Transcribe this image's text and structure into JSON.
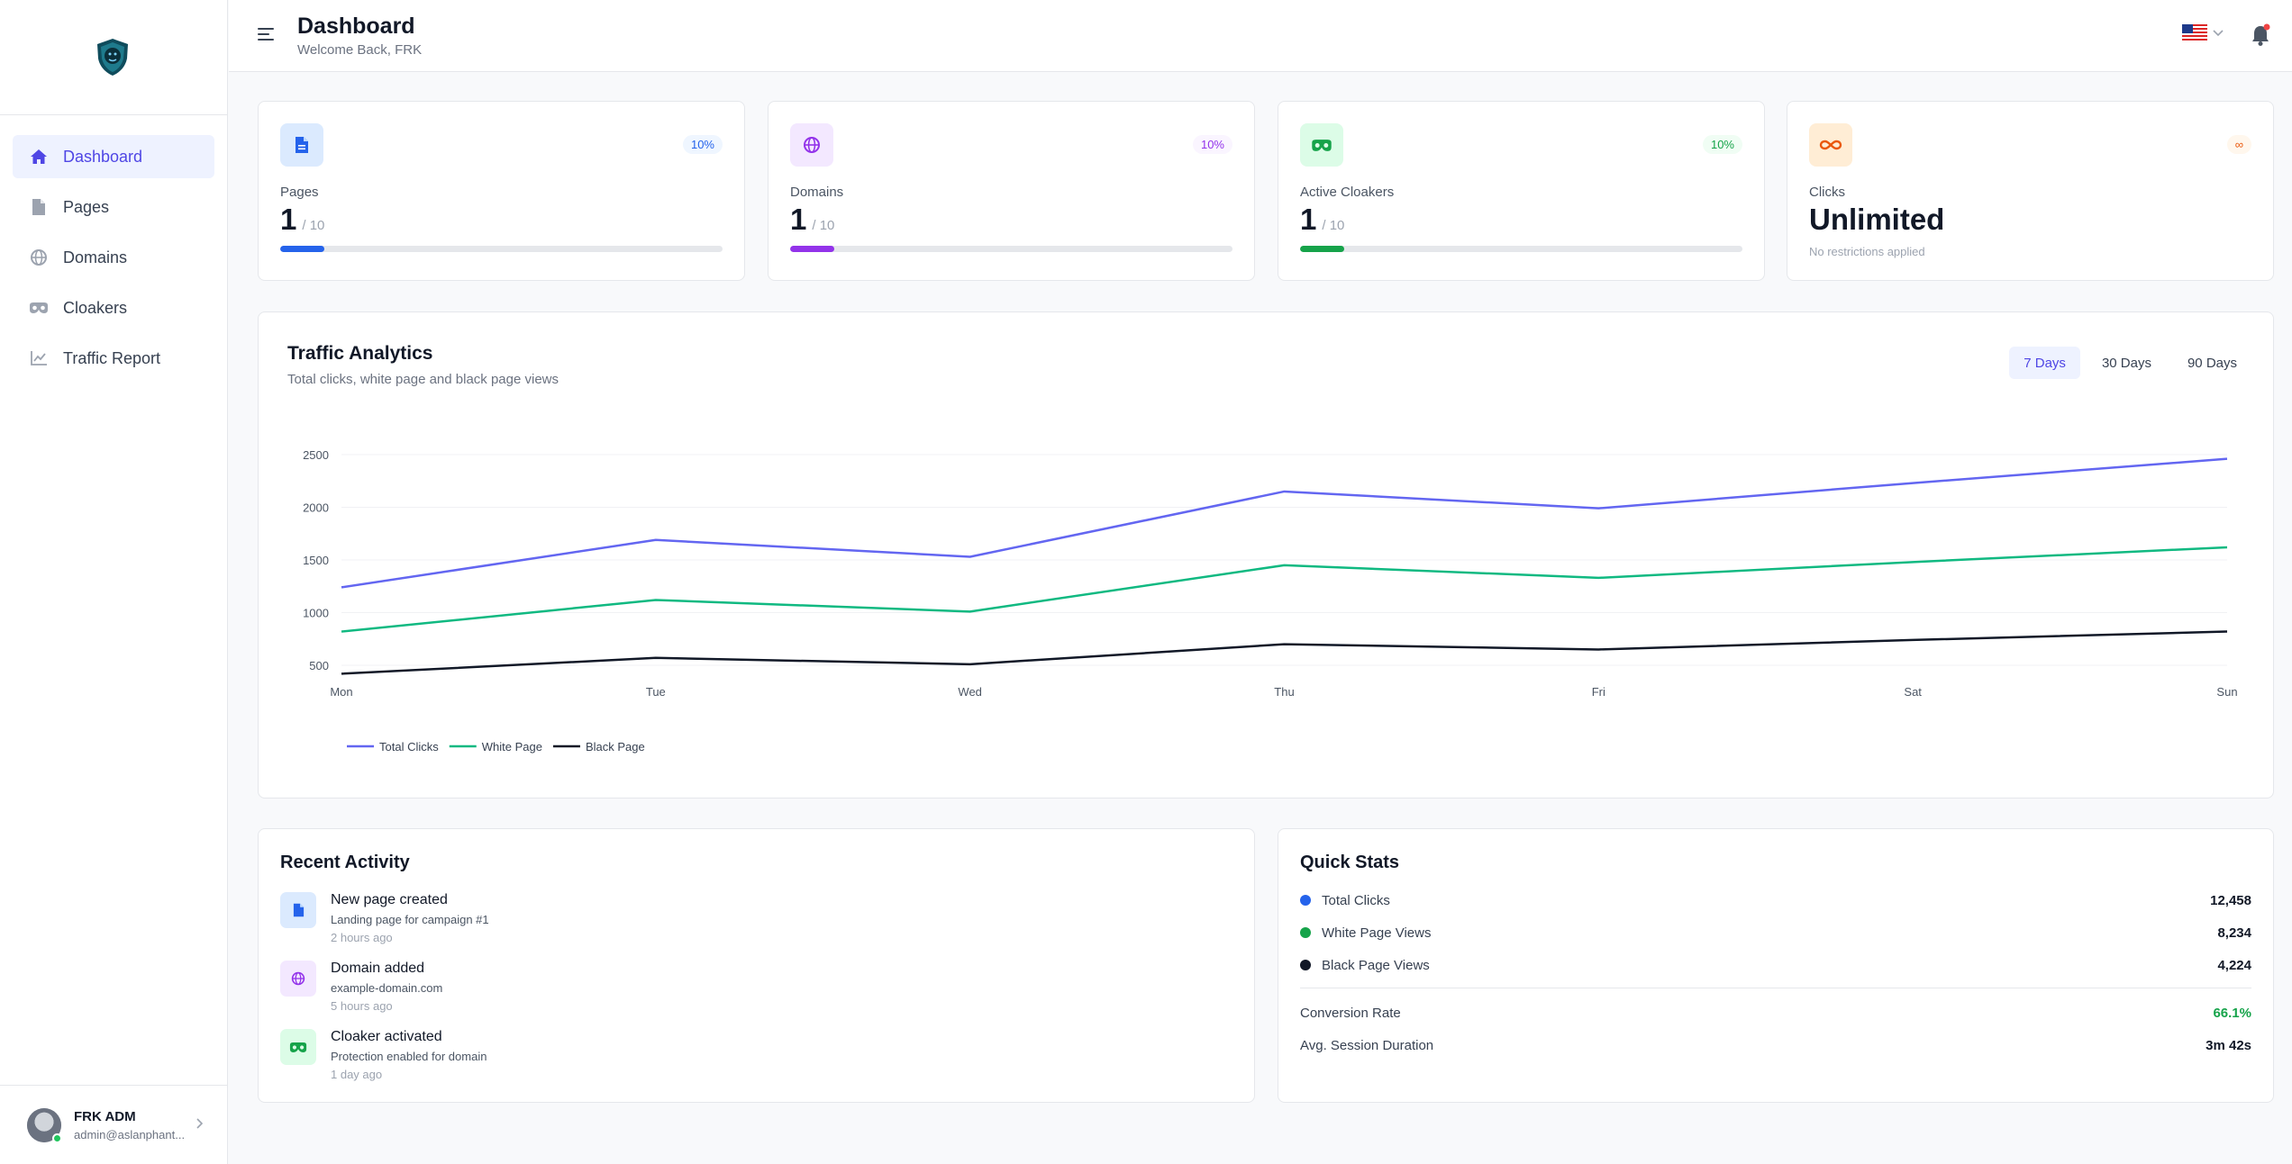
{
  "header": {
    "title": "Dashboard",
    "subtitle": "Welcome Back, FRK"
  },
  "sidebar": {
    "items": [
      {
        "label": "Dashboard",
        "icon": "home-icon",
        "active": true
      },
      {
        "label": "Pages",
        "icon": "file-icon",
        "active": false
      },
      {
        "label": "Domains",
        "icon": "globe-icon",
        "active": false
      },
      {
        "label": "Cloakers",
        "icon": "mask-icon",
        "active": false
      },
      {
        "label": "Traffic Report",
        "icon": "line-chart-icon",
        "active": false
      }
    ]
  },
  "user": {
    "name": "FRK ADM",
    "email": "admin@aslanphant..."
  },
  "stats": [
    {
      "label": "Pages",
      "value": "1",
      "max": "/ 10",
      "badge": "10%",
      "progress": 0.1,
      "color": "#2563eb",
      "bg": "#dbeafe",
      "icon": "file-icon"
    },
    {
      "label": "Domains",
      "value": "1",
      "max": "/ 10",
      "badge": "10%",
      "progress": 0.1,
      "color": "#9333ea",
      "bg": "#f3e8ff",
      "icon": "globe-icon"
    },
    {
      "label": "Active Cloakers",
      "value": "1",
      "max": "/ 10",
      "badge": "10%",
      "progress": 0.1,
      "color": "#16a34a",
      "bg": "#dcfce7",
      "icon": "mask-icon"
    },
    {
      "label": "Clicks",
      "value": "Unlimited",
      "note": "No restrictions applied",
      "badge": "∞",
      "color": "#ea580c",
      "bg": "#ffedd5",
      "icon": "infinity-icon"
    }
  ],
  "traffic": {
    "title": "Traffic Analytics",
    "subtitle": "Total clicks, white page and black page views",
    "ranges": [
      "7 Days",
      "30 Days",
      "90 Days"
    ],
    "active_range": "7 Days"
  },
  "chart_data": {
    "type": "line",
    "x": [
      "Mon",
      "Tue",
      "Wed",
      "Thu",
      "Fri",
      "Sat",
      "Sun"
    ],
    "yticks": [
      500,
      1000,
      1500,
      2000,
      2500
    ],
    "ylim": [
      500,
      2500
    ],
    "grid": true,
    "legend": "bottom-left",
    "series": [
      {
        "name": "Total Clicks",
        "color": "#6366f1",
        "values": [
          1240,
          1690,
          1530,
          2150,
          1990,
          2230,
          2460
        ]
      },
      {
        "name": "White Page",
        "color": "#10b981",
        "values": [
          820,
          1120,
          1010,
          1450,
          1330,
          1480,
          1620
        ]
      },
      {
        "name": "Black Page",
        "color": "#111827",
        "values": [
          420,
          570,
          510,
          700,
          650,
          740,
          820
        ]
      }
    ]
  },
  "activity": {
    "title": "Recent Activity",
    "items": [
      {
        "title": "New page created",
        "desc": "Landing page for campaign #1",
        "time": "2 hours ago",
        "icon": "file-icon",
        "color": "#2563eb",
        "bg": "#dbeafe"
      },
      {
        "title": "Domain added",
        "desc": "example-domain.com",
        "time": "5 hours ago",
        "icon": "globe-icon",
        "color": "#9333ea",
        "bg": "#f3e8ff"
      },
      {
        "title": "Cloaker activated",
        "desc": "Protection enabled for domain",
        "time": "1 day ago",
        "icon": "mask-icon",
        "color": "#16a34a",
        "bg": "#dcfce7"
      }
    ]
  },
  "quick_stats": {
    "title": "Quick Stats",
    "rows": [
      {
        "label": "Total Clicks",
        "value": "12,458",
        "dot": "#2563eb"
      },
      {
        "label": "White Page Views",
        "value": "8,234",
        "dot": "#16a34a"
      },
      {
        "label": "Black Page Views",
        "value": "4,224",
        "dot": "#111827"
      }
    ],
    "conversion_label": "Conversion Rate",
    "conversion_value": "66.1%",
    "conversion_color": "#16a34a",
    "session_label": "Avg. Session Duration",
    "session_value": "3m 42s"
  }
}
